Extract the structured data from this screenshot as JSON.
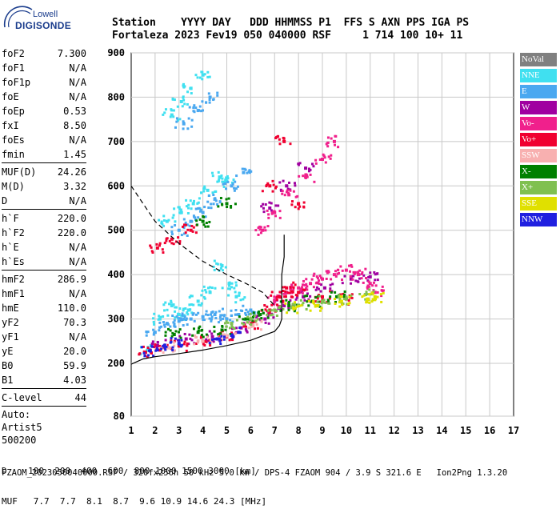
{
  "logo": {
    "brand": "Lowell",
    "product": "DIGISONDE"
  },
  "header": {
    "line1": "Station    YYYY DAY   DDD HHMMSS P1  FFS S AXN PPS IGA PS",
    "line2": "Fortaleza 2023 Fev19 050 040000 RSF     1 714 100 10+ 11"
  },
  "params": [
    {
      "label": "foF2",
      "value": "7.300"
    },
    {
      "label": "foF1",
      "value": "N/A"
    },
    {
      "label": "foF1p",
      "value": "N/A"
    },
    {
      "label": "foE",
      "value": "N/A"
    },
    {
      "label": "foEp",
      "value": "0.53"
    },
    {
      "label": "fxI",
      "value": "8.50"
    },
    {
      "label": "foEs",
      "value": "N/A"
    },
    {
      "label": "fmin",
      "value": "1.45"
    },
    {
      "sep": true
    },
    {
      "label": "MUF(D)",
      "value": "24.26"
    },
    {
      "label": "M(D)",
      "value": "3.32"
    },
    {
      "label": "D",
      "value": "N/A"
    },
    {
      "sep": true
    },
    {
      "label": "h`F",
      "value": "220.0"
    },
    {
      "label": "h`F2",
      "value": "220.0"
    },
    {
      "label": "h`E",
      "value": "N/A"
    },
    {
      "label": "h`Es",
      "value": "N/A"
    },
    {
      "sep": true
    },
    {
      "label": "hmF2",
      "value": "286.9"
    },
    {
      "label": "hmF1",
      "value": "N/A"
    },
    {
      "label": "hmE",
      "value": "110.0"
    },
    {
      "label": "yF2",
      "value": "70.3"
    },
    {
      "label": "yF1",
      "value": "N/A"
    },
    {
      "label": "yE",
      "value": "20.0"
    },
    {
      "label": "B0",
      "value": "59.9"
    },
    {
      "label": "B1",
      "value": "4.03"
    },
    {
      "sep": true
    },
    {
      "label": "C-level",
      "value": "44"
    },
    {
      "sep": true
    },
    {
      "plain": "Auto:"
    },
    {
      "plain": "Artist5"
    },
    {
      "plain": "500200"
    }
  ],
  "legend": [
    {
      "label": "NoVal",
      "color": "#808080"
    },
    {
      "label": "NNE",
      "color": "#40e0f0"
    },
    {
      "label": "E",
      "color": "#4aa8f0"
    },
    {
      "label": "W",
      "color": "#a000a0"
    },
    {
      "label": "Vo-",
      "color": "#f0208c"
    },
    {
      "label": "Vo+",
      "color": "#f00030"
    },
    {
      "label": "SSW",
      "color": "#f8b0b0"
    },
    {
      "label": "X-",
      "color": "#008000"
    },
    {
      "label": "X+",
      "color": "#80c050"
    },
    {
      "label": "SSE",
      "color": "#e0e000"
    },
    {
      "label": "NNW",
      "color": "#2020e0"
    }
  ],
  "bottom": {
    "d_row": "D    100  200  400  600  800 1000 1500 3000 [km]",
    "muf_row": "MUF   7.7  7.7  8.1  8.7  9.6 10.9 14.6 24.3 [MHz]",
    "footer": "FZAOM_2023050040000.RSF / 320fx256h 50 kHz 5.0 km / DPS-4 FZAOM 904 / 3.9 S 321.6 E   Ion2Png 1.3.20"
  },
  "chart_data": {
    "type": "scatter",
    "title": "",
    "xlabel": "",
    "ylabel": "",
    "xlim": [
      1,
      17
    ],
    "ylim": [
      80,
      900
    ],
    "x_ticks": [
      1,
      2,
      3,
      4,
      5,
      6,
      7,
      8,
      9,
      10,
      11,
      12,
      13,
      14,
      15,
      16,
      17
    ],
    "y_ticks": [
      80,
      200,
      300,
      400,
      500,
      600,
      700,
      800,
      900
    ],
    "grid": true,
    "legend_position": "right",
    "series": [
      {
        "name": "NNE",
        "points": [
          [
            1.7,
            230
          ],
          [
            2.2,
            300
          ],
          [
            2.7,
            330
          ],
          [
            3.0,
            310
          ],
          [
            3.4,
            320
          ],
          [
            3.8,
            340
          ],
          [
            4.3,
            360
          ],
          [
            4.8,
            420
          ],
          [
            5.1,
            380
          ],
          [
            5.4,
            350
          ],
          [
            2.5,
            520
          ],
          [
            3.1,
            540
          ],
          [
            3.6,
            560
          ],
          [
            4.2,
            590
          ],
          [
            4.7,
            620
          ],
          [
            5.0,
            610
          ],
          [
            2.7,
            760
          ],
          [
            3.1,
            790
          ],
          [
            3.5,
            820
          ],
          [
            4.0,
            850
          ]
        ]
      },
      {
        "name": "E",
        "points": [
          [
            2.0,
            270
          ],
          [
            2.5,
            290
          ],
          [
            3.0,
            295
          ],
          [
            3.5,
            300
          ],
          [
            4.0,
            305
          ],
          [
            4.5,
            310
          ],
          [
            5.0,
            300
          ],
          [
            5.5,
            310
          ],
          [
            6.0,
            320
          ],
          [
            3.0,
            500
          ],
          [
            3.5,
            520
          ],
          [
            4.0,
            540
          ],
          [
            4.5,
            570
          ],
          [
            5.2,
            600
          ],
          [
            5.7,
            630
          ],
          [
            3.2,
            740
          ],
          [
            3.8,
            770
          ],
          [
            4.3,
            800
          ]
        ]
      },
      {
        "name": "W",
        "points": [
          [
            2.1,
            240
          ],
          [
            3.3,
            255
          ],
          [
            4.4,
            260
          ],
          [
            5.6,
            280
          ],
          [
            6.6,
            300
          ],
          [
            7.4,
            330
          ],
          [
            8.2,
            350
          ],
          [
            9.1,
            370
          ],
          [
            10.2,
            390
          ],
          [
            11.0,
            395
          ],
          [
            6.8,
            550
          ],
          [
            7.5,
            600
          ],
          [
            8.3,
            640
          ]
        ]
      },
      {
        "name": "Vo-",
        "points": [
          [
            7.0,
            340
          ],
          [
            7.5,
            360
          ],
          [
            8.0,
            370
          ],
          [
            8.5,
            380
          ],
          [
            9.0,
            390
          ],
          [
            9.5,
            400
          ],
          [
            10.0,
            410
          ],
          [
            10.5,
            400
          ],
          [
            11.0,
            380
          ],
          [
            11.2,
            360
          ],
          [
            6.5,
            500
          ],
          [
            7.0,
            540
          ],
          [
            7.6,
            580
          ],
          [
            8.3,
            620
          ],
          [
            9.0,
            660
          ],
          [
            9.5,
            700
          ]
        ]
      },
      {
        "name": "Vo+",
        "points": [
          [
            1.6,
            225
          ],
          [
            2.2,
            230
          ],
          [
            3.0,
            240
          ],
          [
            4.0,
            250
          ],
          [
            5.0,
            260
          ],
          [
            6.0,
            290
          ],
          [
            6.8,
            320
          ],
          [
            7.2,
            350
          ],
          [
            7.5,
            370
          ],
          [
            8.0,
            360
          ],
          [
            9.0,
            350
          ],
          [
            10.0,
            345
          ],
          [
            2.1,
            460
          ],
          [
            2.7,
            480
          ],
          [
            3.5,
            500
          ],
          [
            6.8,
            600
          ],
          [
            7.4,
            700
          ],
          [
            8.0,
            560
          ]
        ]
      },
      {
        "name": "SSW",
        "points": [
          [
            2.6,
            235
          ],
          [
            4.0,
            250
          ],
          [
            5.0,
            262
          ],
          [
            6.1,
            285
          ]
        ]
      },
      {
        "name": "X-",
        "points": [
          [
            2.8,
            265
          ],
          [
            3.8,
            270
          ],
          [
            4.8,
            275
          ],
          [
            5.8,
            300
          ],
          [
            6.4,
            310
          ],
          [
            7.6,
            330
          ],
          [
            8.6,
            340
          ],
          [
            9.6,
            350
          ],
          [
            4.0,
            520
          ],
          [
            5.0,
            560
          ]
        ]
      },
      {
        "name": "X+",
        "points": [
          [
            5.2,
            290
          ],
          [
            6.0,
            300
          ],
          [
            7.0,
            320
          ],
          [
            8.0,
            330
          ],
          [
            9.0,
            340
          ],
          [
            10.0,
            345
          ],
          [
            10.8,
            355
          ]
        ]
      },
      {
        "name": "SSE",
        "points": [
          [
            7.8,
            325
          ],
          [
            8.8,
            330
          ],
          [
            9.8,
            340
          ],
          [
            10.9,
            345
          ],
          [
            11.2,
            350
          ]
        ]
      },
      {
        "name": "NNW",
        "points": [
          [
            1.8,
            228
          ],
          [
            2.4,
            240
          ],
          [
            3.0,
            245
          ],
          [
            4.6,
            255
          ],
          [
            5.5,
            270
          ]
        ]
      }
    ],
    "curves": [
      {
        "kind": "profile",
        "points": [
          [
            1.0,
            198
          ],
          [
            1.5,
            210
          ],
          [
            2.0,
            215
          ],
          [
            3.0,
            222
          ],
          [
            4.0,
            230
          ],
          [
            5.0,
            240
          ],
          [
            6.0,
            252
          ],
          [
            6.5,
            262
          ],
          [
            7.0,
            272
          ],
          [
            7.2,
            285
          ],
          [
            7.3,
            300
          ],
          [
            7.3,
            400
          ],
          [
            7.4,
            440
          ],
          [
            7.4,
            490
          ]
        ]
      },
      {
        "kind": "muf_dashed",
        "points": [
          [
            1.0,
            600
          ],
          [
            1.5,
            560
          ],
          [
            2.0,
            520
          ],
          [
            3.0,
            470
          ],
          [
            4.0,
            430
          ],
          [
            5.0,
            400
          ],
          [
            5.8,
            380
          ],
          [
            6.5,
            360
          ],
          [
            7.0,
            330
          ]
        ]
      }
    ]
  }
}
